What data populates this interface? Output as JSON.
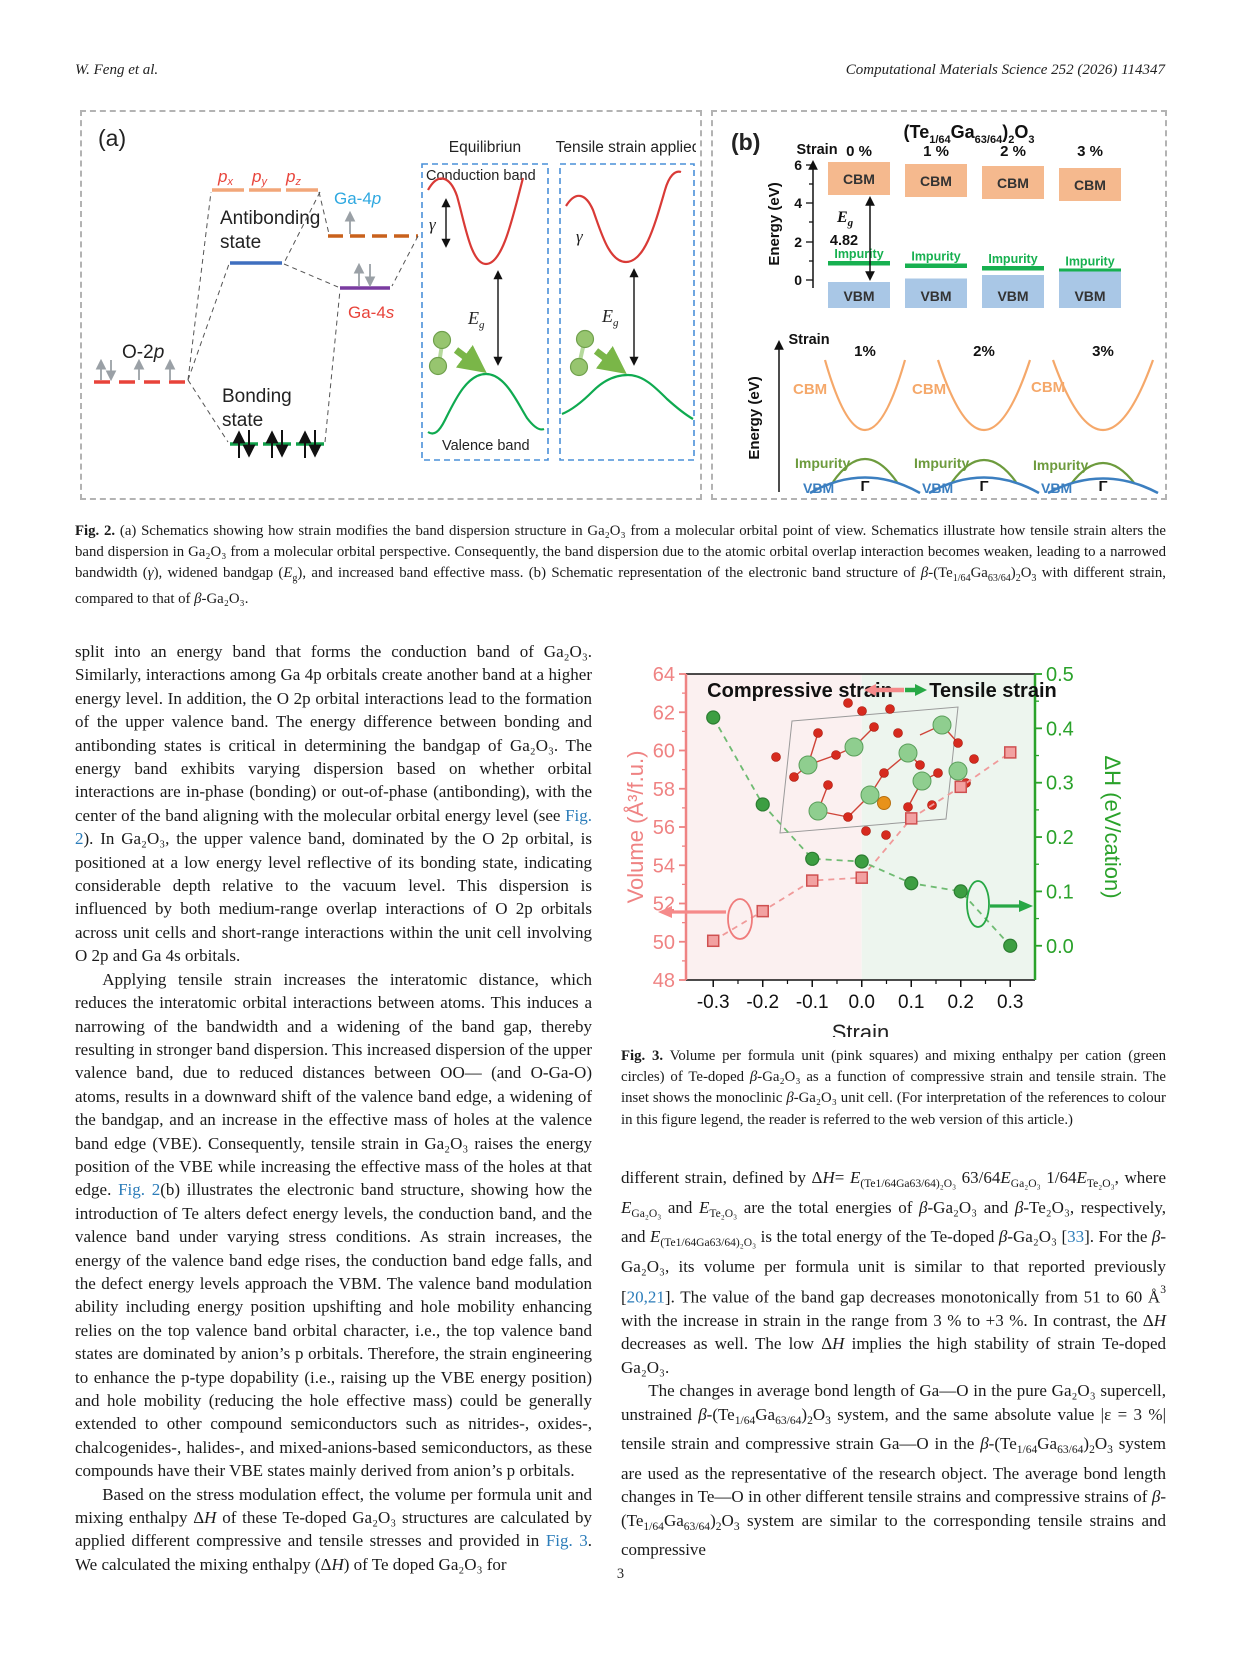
{
  "header": {
    "authors": "W. Feng et al.",
    "journal": "Computational Materials Science 252 (2026) 114347"
  },
  "fig2": {
    "panel_a": {
      "tag": "(a)",
      "px": {
        "b": "p",
        "s": "x"
      },
      "py": {
        "b": "p",
        "s": "y"
      },
      "pz": {
        "b": "p",
        "s": "z"
      },
      "ga4p": {
        "b": "Ga-4",
        "s": "p"
      },
      "ga4s": {
        "b": "Ga-4",
        "s": "s"
      },
      "o2p": {
        "b": "O-2",
        "s": "p"
      },
      "antibonding_1": "Antibonding",
      "antibonding_2": "state",
      "bonding_1": "Bonding",
      "bonding_2": "state",
      "equilibrium_title": "Equilibriun",
      "tensile_title": "Tensile strain applied",
      "conduction_band": "Conduction band",
      "valence_band": "Valence band",
      "gamma": "γ",
      "eg": {
        "b": "E",
        "s": "g"
      }
    },
    "panel_b": {
      "tag": "(b)",
      "title": {
        "t1": "(Te",
        "s1": "1/64",
        "t2": "Ga",
        "s2": "63/64",
        "t3": ")",
        "s3": "2",
        "t4": "O",
        "s4": "3"
      },
      "strain_label": "Strain",
      "energy_label": "Energy (eV)",
      "energy_ticks": [
        "0",
        "2",
        "4",
        "6"
      ],
      "top_strains": [
        "0 %",
        "1 %",
        "2 %",
        "3 %"
      ],
      "bottom_strains": [
        "1%",
        "2%",
        "3%"
      ],
      "cbm_label": "CBM",
      "vbm_label": "VBM",
      "impurity_label": "Impurity",
      "eg": {
        "b": "E",
        "s": "g"
      },
      "eg_value": "4.82",
      "gamma_point": "Γ"
    }
  },
  "fig2_caption": [
    {
      "t": "Fig. 2.",
      "c": "b"
    },
    {
      "t": " (a) Schematics showing how strain modifies the band dispersion structure in Ga₂O₃ from a molecular orbital point of view. Schematics illustrate how tensile strain alters the band dispersion in Ga₂O₃ from a molecular orbital perspective. Consequently, the band dispersion due to the atomic orbital overlap interaction becomes weaken, leading to a narrowed bandwidth ("
    },
    {
      "t": "γ",
      "c": "i"
    },
    {
      "t": "), widened bandgap ("
    },
    {
      "t": "E",
      "c": "i"
    },
    {
      "t": "g",
      "c": "sub"
    },
    {
      "t": "), and increased band effective mass. (b) Schematic representation of the electronic band structure of "
    },
    {
      "t": "β",
      "c": "i"
    },
    {
      "t": "-(Te"
    },
    {
      "t": "1/64",
      "c": "sub"
    },
    {
      "t": "Ga"
    },
    {
      "t": "63/64",
      "c": "sub"
    },
    {
      "t": ")"
    },
    {
      "t": "2",
      "c": "sub"
    },
    {
      "t": "O"
    },
    {
      "t": "3",
      "c": "sub"
    },
    {
      "t": " with different strain, compared to that of "
    },
    {
      "t": "β",
      "c": "i"
    },
    {
      "t": "-Ga₂O₃."
    }
  ],
  "body": {
    "left": {
      "p1": [
        {
          "t": "split into an energy band that forms the conduction band of Ga₂O₃. Similarly, interactions among Ga 4p orbitals create another band at a higher energy level. In addition, the O 2p orbital interactions lead to the formation of the upper valence band. The energy difference between bonding and antibonding states is critical in determining the bandgap of Ga₂O₃. The energy band exhibits varying dispersion based on whether orbital interactions are in-phase (bonding) or out-of-phase (antibonding), with the center of the band aligning with the molecular orbital energy level (see "
        },
        {
          "t": "Fig. 2",
          "c": "link"
        },
        {
          "t": "). In Ga₂O₃, the upper valence band, dominated by the O 2p orbital, is positioned at a low energy level reflective of its bonding state, indicating considerable depth relative to the vacuum level. This dispersion is influenced by both medium-range overlap interactions of O 2p orbitals across unit cells and short-range interactions within the unit cell involving O 2p and Ga 4s orbitals."
        }
      ],
      "p2": [
        {
          "t": "Applying tensile strain increases the interatomic distance, which reduces the interatomic orbital interactions between atoms. This induces a narrowing of the bandwidth and a widening of the band gap, thereby resulting in stronger band dispersion. This increased dispersion of the upper valence band, due to reduced distances between OO— (and O-Ga-O) atoms, results in a downward shift of the valence band edge, a widening of the bandgap, and an increase in the effective mass of holes at the valence band edge (VBE). Consequently, tensile strain in Ga₂O₃ raises the energy position of the VBE while increasing the effective mass of the holes at that edge. "
        },
        {
          "t": "Fig. 2",
          "c": "link"
        },
        {
          "t": "(b) illustrates the electronic band structure, showing how the introduction of Te alters defect energy levels, the conduction band, and the valence band under varying stress conditions. As strain increases, the energy of the valence band edge rises, the conduction band edge falls, and the defect energy levels approach the VBM. The valence band modulation ability including energy position upshifting and hole mobility enhancing relies on the top valence band orbital character, i.e., the top valence band states are dominated by anion’s p orbitals. Therefore, the strain engineering to enhance the p-type dopability (i.e., raising up the VBE energy position) and hole mobility (reducing the hole effective mass) could be generally extended to other compound semiconductors such as nitrides-, oxides-, chalcogenides-, halides-, and mixed-anions-based semiconductors, as these compounds have their VBE states mainly derived from anion’s p orbitals."
        }
      ],
      "p3": [
        {
          "t": "Based on the stress modulation effect, the volume per formula unit and mixing enthalpy Δ"
        },
        {
          "t": "H",
          "c": "i"
        },
        {
          "t": " of these Te-doped Ga₂O₃ structures are calculated by applied different compressive and tensile stresses and provided in "
        },
        {
          "t": "Fig. 3",
          "c": "link"
        },
        {
          "t": ". We calculated the mixing enthalpy (Δ"
        },
        {
          "t": "H",
          "c": "i"
        },
        {
          "t": ") of Te doped Ga₂O₃ for"
        }
      ]
    },
    "right": {
      "p1": [
        {
          "t": "different strain, defined by Δ"
        },
        {
          "t": "H",
          "c": "i"
        },
        {
          "t": "= "
        },
        {
          "t": "E",
          "c": "i"
        },
        {
          "t": "(Te1/64Ga63/64)₂O₃",
          "c": "sub"
        },
        {
          "t": " 63/64"
        },
        {
          "t": "E",
          "c": "i"
        },
        {
          "t": "Ga₂O₃",
          "c": "sub"
        },
        {
          "t": " 1/64"
        },
        {
          "t": "E",
          "c": "i"
        },
        {
          "t": "Te₂O₃",
          "c": "sub"
        },
        {
          "t": ", where "
        },
        {
          "t": "E",
          "c": "i"
        },
        {
          "t": "Ga₂O₃",
          "c": "sub"
        },
        {
          "t": " and "
        },
        {
          "t": "E",
          "c": "i"
        },
        {
          "t": "Te₂O₃",
          "c": "sub"
        },
        {
          "t": " are the total energies of "
        },
        {
          "t": "β",
          "c": "i"
        },
        {
          "t": "-Ga₂O₃ and "
        },
        {
          "t": "β",
          "c": "i"
        },
        {
          "t": "-Te₂O₃, respectively, and "
        },
        {
          "t": "E",
          "c": "i"
        },
        {
          "t": "(Te1/64Ga63/64)₂O₃",
          "c": "sub"
        },
        {
          "t": " is the total energy of the Te-doped "
        },
        {
          "t": "β",
          "c": "i"
        },
        {
          "t": "-Ga₂O₃ ["
        },
        {
          "t": "33",
          "c": "link"
        },
        {
          "t": "]. For the "
        },
        {
          "t": "β",
          "c": "i"
        },
        {
          "t": "-Ga₂O₃, its volume per formula unit is similar to that reported previously ["
        },
        {
          "t": "20,21",
          "c": "link"
        },
        {
          "t": "]. The value of the band gap decreases monotonically from 51 to 60 Å"
        },
        {
          "t": "3",
          "c": "sup"
        },
        {
          "t": " with the increase in strain in the range from  3 % to +3 %. In contrast, the Δ"
        },
        {
          "t": "H",
          "c": "i"
        },
        {
          "t": " decreases as well. The low Δ"
        },
        {
          "t": "H",
          "c": "i"
        },
        {
          "t": " implies the high stability of strain Te-doped Ga₂O₃."
        }
      ],
      "p2": [
        {
          "t": "The changes in average bond length of Ga—O in the pure Ga₂O₃ supercell, unstrained "
        },
        {
          "t": "β",
          "c": "i"
        },
        {
          "t": "-(Te"
        },
        {
          "t": "1/64",
          "c": "sub"
        },
        {
          "t": "Ga"
        },
        {
          "t": "63/64",
          "c": "sub"
        },
        {
          "t": ")"
        },
        {
          "t": "2",
          "c": "sub"
        },
        {
          "t": "O"
        },
        {
          "t": "3",
          "c": "sub"
        },
        {
          "t": " system, and the same absolute value |ε = 3 %| tensile strain and compressive strain Ga—O in the "
        },
        {
          "t": "β",
          "c": "i"
        },
        {
          "t": "-(Te"
        },
        {
          "t": "1/64",
          "c": "sub"
        },
        {
          "t": "Ga"
        },
        {
          "t": "63/64",
          "c": "sub"
        },
        {
          "t": ")"
        },
        {
          "t": "2",
          "c": "sub"
        },
        {
          "t": "O"
        },
        {
          "t": "3",
          "c": "sub"
        },
        {
          "t": " system are used as the representative of the research object. The average bond length changes in Te—O in other different tensile strains and compressive strains of "
        },
        {
          "t": "β",
          "c": "i"
        },
        {
          "t": "-(Te"
        },
        {
          "t": "1/64",
          "c": "sub"
        },
        {
          "t": "Ga"
        },
        {
          "t": "63/64",
          "c": "sub"
        },
        {
          "t": ")"
        },
        {
          "t": "2",
          "c": "sub"
        },
        {
          "t": "O"
        },
        {
          "t": "3",
          "c": "sub"
        },
        {
          "t": " system are similar to the corresponding tensile strains and compressive"
        }
      ]
    }
  },
  "fig3_caption": [
    {
      "t": "Fig. 3.",
      "c": "b"
    },
    {
      "t": " Volume per formula unit (pink squares) and mixing enthalpy per cation (green circles) of Te-doped "
    },
    {
      "t": "β",
      "c": "i"
    },
    {
      "t": "-Ga₂O₃ as a function of compressive strain and tensile strain. The inset shows the monoclinic "
    },
    {
      "t": "β",
      "c": "i"
    },
    {
      "t": "-Ga₂O₃ unit cell. (For interpretation of the references to colour in this figure legend, the reader is referred to the web version of this article.)"
    }
  ],
  "chart_data": {
    "type": "scatter",
    "xlabel": "Strain",
    "ylabel_left": "Volume (Å³/f.u.)",
    "ylabel_right": "ΔH (eV/cation)",
    "xlim": [
      -0.355,
      0.35
    ],
    "ylim_left": [
      48,
      64
    ],
    "ylim_right": [
      -0.063,
      0.5
    ],
    "xticks": [
      -0.3,
      -0.2,
      -0.1,
      0.0,
      0.1,
      0.2,
      0.3
    ],
    "xtick_labels": [
      "-0.3",
      "-0.2",
      "-0.1",
      "0.0",
      "0.1",
      "0.2",
      "0.3"
    ],
    "yticks_left": [
      48,
      50,
      52,
      54,
      56,
      58,
      60,
      62,
      64
    ],
    "ytick_left_labels": [
      "48",
      "50",
      "52",
      "54",
      "56",
      "58",
      "60",
      "62",
      "64"
    ],
    "yticks_right": [
      0.0,
      0.1,
      0.2,
      0.3,
      0.4,
      0.5
    ],
    "ytick_right_labels": [
      "0.0",
      "0.1",
      "0.2",
      "0.3",
      "0.4",
      "0.5"
    ],
    "annotations": {
      "compressive": "Compressive strain",
      "tensile": "Tensile strain"
    },
    "series": [
      {
        "name": "Volume per formula unit (pink squares, left axis)",
        "axis": "left",
        "marker": "square",
        "x": [
          -0.3,
          -0.2,
          -0.1,
          0.0,
          0.1,
          0.2,
          0.3
        ],
        "y": [
          50.05,
          51.6,
          53.2,
          53.35,
          56.45,
          58.1,
          59.9
        ],
        "line_color": "#f09a9a",
        "fill": "#f2a1a1",
        "stroke": "#cf5050"
      },
      {
        "name": "Mixing enthalpy ΔH (green circles, right axis)",
        "axis": "right",
        "marker": "circle",
        "x": [
          -0.3,
          -0.2,
          -0.1,
          0.0,
          0.1,
          0.2,
          0.3
        ],
        "y": [
          0.42,
          0.26,
          0.16,
          0.155,
          0.115,
          0.1,
          0.0
        ],
        "line_color": "#6fbb72",
        "fill": "#3d9e42",
        "stroke": "#2c7d31"
      }
    ],
    "colors": {
      "volume_axis": "#ef8383",
      "dh_axis": "#2aa22a",
      "bg_compressive": "#fbf0f0",
      "bg_tensile": "#edf5ee",
      "frame": "#111111"
    },
    "legend_position": "none",
    "grid": false
  },
  "footer": {
    "page_number": "3"
  }
}
